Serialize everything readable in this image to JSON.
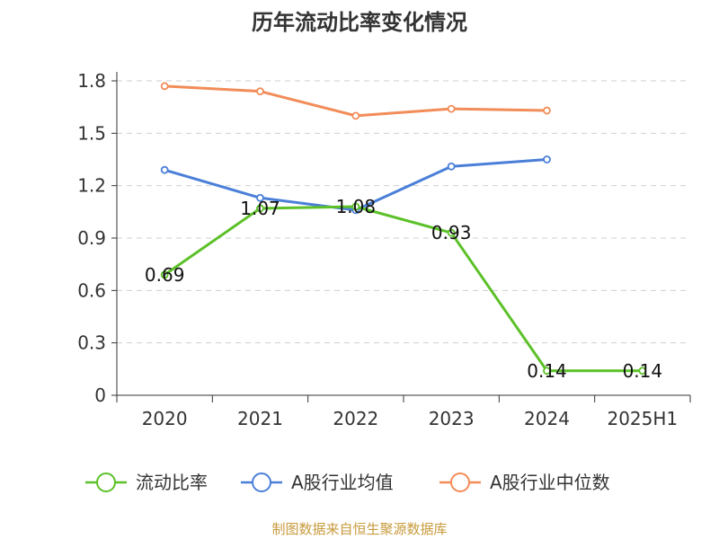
{
  "chart_data": {
    "type": "line",
    "title": "历年流动比率变化情况",
    "categories": [
      "2020",
      "2021",
      "2022",
      "2023",
      "2024",
      "2025H1"
    ],
    "ylim": [
      0,
      1.8
    ],
    "yticks": [
      "0",
      "0.3",
      "0.6",
      "0.9",
      "1.2",
      "1.5",
      "1.8"
    ],
    "grid": true,
    "legend_position": "bottom",
    "series": [
      {
        "name": "流动比率",
        "color": "#5cc128",
        "values": [
          0.69,
          1.07,
          1.08,
          0.93,
          0.14,
          0.14
        ],
        "labels": [
          "0.69",
          "1.07",
          "1.08",
          "0.93",
          "0.14",
          "0.14"
        ]
      },
      {
        "name": "A股行业均值",
        "color": "#4a7fd8",
        "values": [
          1.29,
          1.13,
          1.06,
          1.31,
          1.35,
          null
        ]
      },
      {
        "name": "A股行业中位数",
        "color": "#f28c58",
        "values": [
          1.77,
          1.74,
          1.6,
          1.64,
          1.63,
          null
        ]
      }
    ]
  },
  "source": "制图数据来自恒生聚源数据库"
}
